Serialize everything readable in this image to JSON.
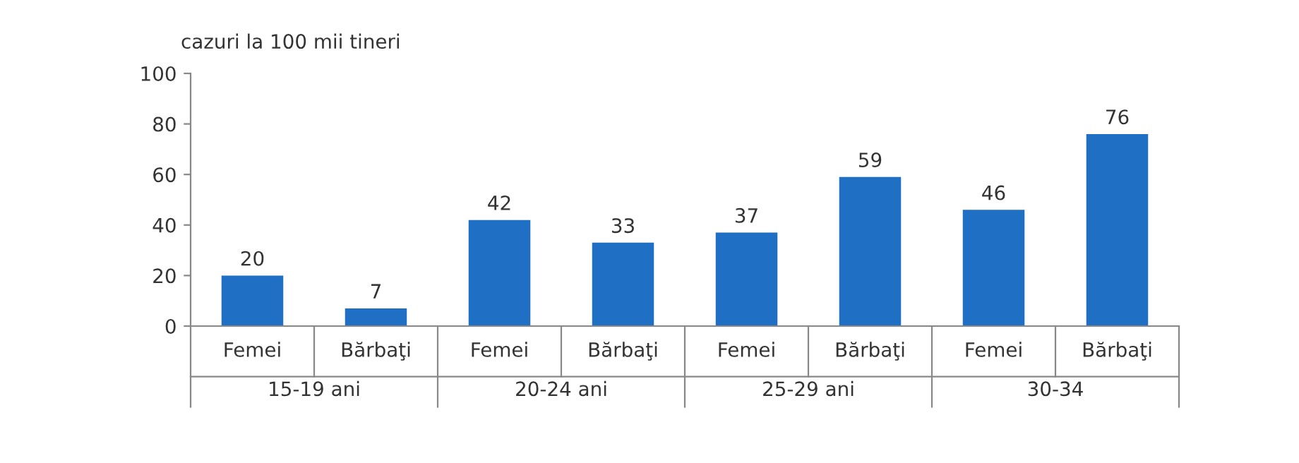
{
  "chart_data": {
    "type": "bar",
    "ylabel": "cazuri la 100 mii tineri",
    "categories": [
      "Femei",
      "Bărbaţi",
      "Femei",
      "Bărbaţi",
      "Femei",
      "Bărbaţi",
      "Femei",
      "Bărbaţi"
    ],
    "values": [
      20,
      7,
      42,
      33,
      37,
      59,
      46,
      76
    ],
    "color": "#1f6fc5",
    "annotations": [
      "15-19 ani",
      "20-24 ani",
      "25-29 ani",
      "30-34"
    ],
    "ylim": [
      0,
      100
    ],
    "yticks": [
      0,
      20,
      40,
      60,
      80,
      100
    ],
    "grid": false,
    "data_labels": true
  }
}
